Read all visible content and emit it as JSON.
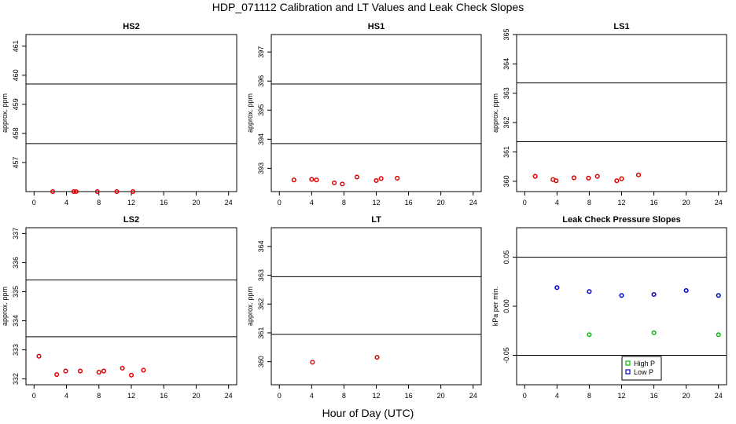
{
  "title": "HDP_071112  Calibration and LT Values and Leak Check Slopes",
  "xlabel": "Hour of Day (UTC)",
  "colors": {
    "calibration_points": "#e00000",
    "high_p": "#00c000",
    "low_p": "#0000cc",
    "lines": "#000000"
  },
  "chart_data": [
    {
      "id": "hs2",
      "type": "scatter",
      "title": "HS2",
      "ylabel": "approx. ppm",
      "xlim": [
        -1,
        25
      ],
      "ylim": [
        456.0,
        461.4
      ],
      "xticks": [
        0,
        4,
        8,
        12,
        16,
        20,
        24
      ],
      "yticks": [
        457,
        458,
        459,
        460,
        461
      ],
      "hlines": [
        457.65,
        459.7
      ],
      "series": [
        {
          "color": "#e00000",
          "x": [
            2.3,
            4.9,
            5.2,
            7.8,
            10.2,
            12.2
          ],
          "y": [
            456.0,
            456.0,
            456.0,
            456.0,
            456.0,
            456.0
          ]
        }
      ]
    },
    {
      "id": "hs1",
      "type": "scatter",
      "title": "HS1",
      "ylabel": "approx. ppm",
      "xlim": [
        -1,
        25
      ],
      "ylim": [
        392.2,
        397.6
      ],
      "xticks": [
        0,
        4,
        8,
        12,
        16,
        20,
        24
      ],
      "yticks": [
        393,
        394,
        395,
        396,
        397
      ],
      "hlines": [
        393.85,
        395.9
      ],
      "series": [
        {
          "color": "#e00000",
          "x": [
            1.8,
            4.0,
            4.6,
            6.8,
            7.8,
            9.6,
            12.0,
            12.6,
            14.6
          ],
          "y": [
            392.6,
            392.62,
            392.6,
            392.5,
            392.46,
            392.7,
            392.58,
            392.65,
            392.66
          ]
        }
      ]
    },
    {
      "id": "ls1",
      "type": "scatter",
      "title": "LS1",
      "ylabel": "approx. ppm",
      "xlim": [
        -1,
        25
      ],
      "ylim": [
        359.65,
        365.0
      ],
      "xticks": [
        0,
        4,
        8,
        12,
        16,
        20,
        24
      ],
      "yticks": [
        360,
        361,
        362,
        363,
        364,
        365
      ],
      "hlines": [
        361.35,
        363.35
      ],
      "series": [
        {
          "color": "#e00000",
          "x": [
            1.3,
            3.5,
            3.9,
            6.1,
            7.9,
            9.0,
            11.4,
            12.0,
            14.1
          ],
          "y": [
            360.17,
            360.06,
            360.02,
            360.12,
            360.11,
            360.17,
            360.02,
            360.09,
            360.22
          ]
        }
      ]
    },
    {
      "id": "ls2",
      "type": "scatter",
      "title": "LS2",
      "ylabel": "approx. ppm",
      "xlim": [
        -1,
        25
      ],
      "ylim": [
        331.8,
        337.2
      ],
      "xticks": [
        0,
        4,
        8,
        12,
        16,
        20,
        24
      ],
      "yticks": [
        332,
        333,
        334,
        335,
        336,
        337
      ],
      "hlines": [
        333.45,
        335.4
      ],
      "series": [
        {
          "color": "#e00000",
          "x": [
            0.6,
            2.8,
            3.9,
            5.7,
            8.0,
            8.6,
            10.9,
            12.0,
            13.5
          ],
          "y": [
            332.78,
            332.15,
            332.27,
            332.27,
            332.23,
            332.27,
            332.37,
            332.13,
            332.3
          ]
        }
      ]
    },
    {
      "id": "lt",
      "type": "scatter",
      "title": "LT",
      "ylabel": "approx. ppm",
      "xlim": [
        -1,
        25
      ],
      "ylim": [
        359.2,
        364.65
      ],
      "xticks": [
        0,
        4,
        8,
        12,
        16,
        20,
        24
      ],
      "yticks": [
        360,
        361,
        362,
        363,
        364
      ],
      "hlines": [
        360.95,
        362.95
      ],
      "series": [
        {
          "color": "#e00000",
          "x": [
            4.1,
            12.1
          ],
          "y": [
            359.98,
            360.15
          ]
        }
      ]
    },
    {
      "id": "leak",
      "type": "scatter",
      "title": "Leak Check Pressure Slopes",
      "ylabel": "kPa per min.",
      "xlim": [
        -1,
        25
      ],
      "ylim": [
        -0.08,
        0.08
      ],
      "xticks": [
        0,
        4,
        8,
        12,
        16,
        20,
        24
      ],
      "yticks": [
        -0.05,
        0.0,
        0.05
      ],
      "ytick_labels": [
        "-0.05",
        "0.00",
        "0.05"
      ],
      "hlines": [
        -0.05,
        0.05
      ],
      "series": [
        {
          "name": "High P",
          "color": "#00c000",
          "x": [
            8,
            16,
            24
          ],
          "y": [
            -0.029,
            -0.027,
            -0.029
          ]
        },
        {
          "name": "Low P",
          "color": "#0000cc",
          "x": [
            4,
            8,
            12,
            16,
            20,
            24
          ],
          "y": [
            0.019,
            0.015,
            0.011,
            0.012,
            0.016,
            0.011
          ]
        }
      ],
      "legend": "bottom-center"
    }
  ]
}
